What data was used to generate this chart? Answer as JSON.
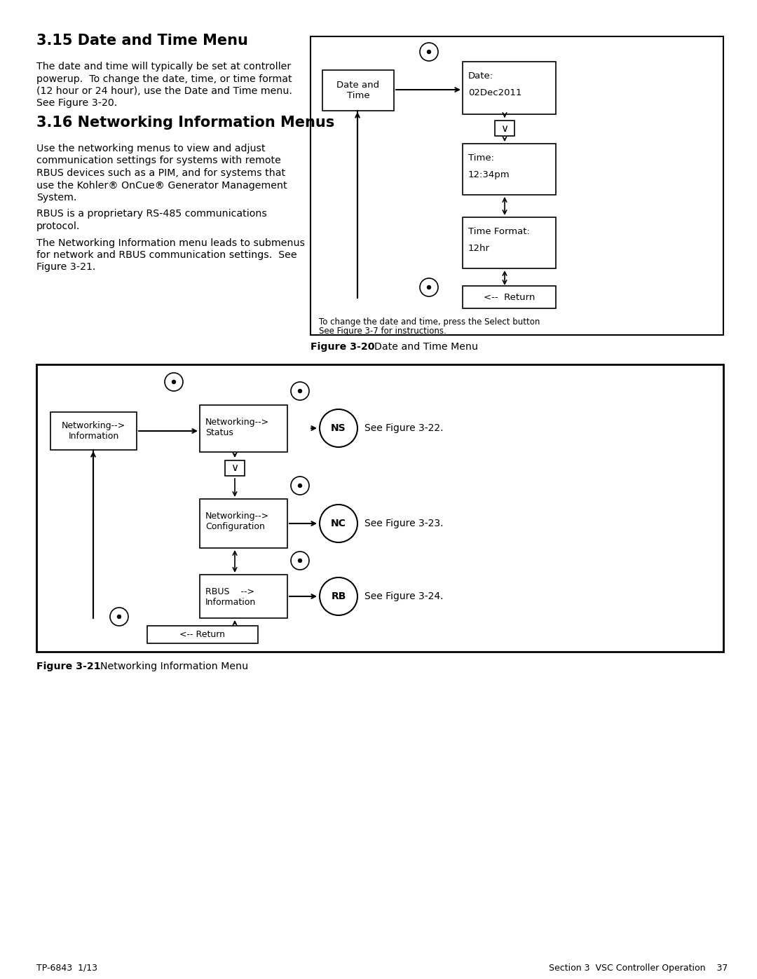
{
  "page_bg": "#ffffff",
  "section_315_title": "3.15 Date and Time Menu",
  "section_316_title": "3.16 Networking Information Menus",
  "fig20_caption_bold": "Figure 3-20",
  "fig20_caption_rest": "  Date and Time Menu",
  "fig20_note_line1": "To change the date and time, press the Select button",
  "fig20_note_line2": "See Figure 3-7 for instructions.",
  "fig21_caption_bold": "Figure 3-21",
  "fig21_caption_rest": "  Networking Information Menu",
  "footer_left": "TP-6843  1/13",
  "footer_right": "Section 3  VSC Controller Operation    37",
  "body_315_lines": [
    "The date and time will typically be set at controller",
    "powerup.  To change the date, time, or time format",
    "(12 hour or 24 hour), use the Date and Time menu.",
    "See Figure 3-20."
  ],
  "body_316_1_lines": [
    "Use the networking menus to view and adjust",
    "communication settings for systems with remote",
    "RBUS devices such as a PIM, and for systems that",
    "use the Kohler® OnCue® Generator Management",
    "System."
  ],
  "body_316_2_lines": [
    "RBUS is a proprietary RS-485 communications",
    "protocol."
  ],
  "body_316_3_lines": [
    "The Networking Information menu leads to submenus",
    "for network and RBUS communication settings.  See",
    "Figure 3-21."
  ]
}
